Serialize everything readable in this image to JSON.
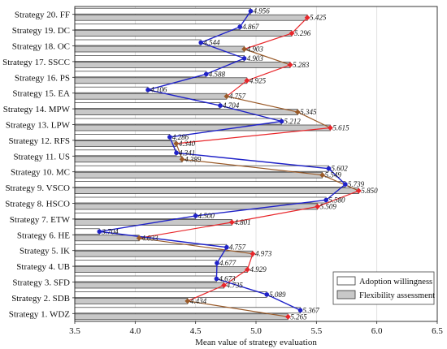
{
  "chart_data": {
    "type": "bar",
    "xlabel": "Mean value of strategy evaluation",
    "xlim": [
      3.5,
      6.5
    ],
    "xticks": [
      "3.5",
      "4.0",
      "4.5",
      "5.0",
      "5.5",
      "6.0",
      "6.5"
    ],
    "grid": true,
    "legend_position": "bottom-right",
    "categories": [
      "Strategy 1. WDZ",
      "Strategy 2. SDB",
      "Strategy 3. SFD",
      "Strategy 4. UB",
      "Strategy 5. IK",
      "Strategy 6. HE",
      "Strategy 7. ETW",
      "Strategy 8. HSCO",
      "Strategy 9. VSCO",
      "Strategy 10. MC",
      "Strategy 11. US",
      "Strategy 12. RFS",
      "Strategy 13. LPW",
      "Strategy 14. MPW",
      "Strategy 15. EA",
      "Strategy 16. PS",
      "Strategy 17. SSCC",
      "Strategy 18. OC",
      "Strategy 19. DC",
      "Strategy 20. FF"
    ],
    "series": [
      {
        "name": "Adoption willingness",
        "values": [
          5.367,
          5.089,
          4.673,
          4.677,
          4.757,
          3.704,
          4.5,
          5.58,
          5.739,
          5.602,
          4.341,
          4.286,
          5.212,
          4.704,
          4.106,
          4.588,
          4.903,
          4.544,
          4.867,
          4.956
        ],
        "labels": [
          "5.367",
          "5.089",
          "4.673",
          "4.677",
          "4.757",
          "3.704",
          "4.500",
          "5.580",
          "5.739",
          "5.602",
          "4.341",
          "4.286",
          "5.212",
          "4.704",
          "4.106",
          "4.588",
          "4.903",
          "4.544",
          "4.867",
          "4.956"
        ]
      },
      {
        "name": "Flexibility assessment",
        "values": [
          5.265,
          4.434,
          4.735,
          4.929,
          4.973,
          4.033,
          4.801,
          5.509,
          5.85,
          5.549,
          4.389,
          4.34,
          5.615,
          5.345,
          4.757,
          4.925,
          5.283,
          4.903,
          5.296,
          5.425
        ],
        "labels": [
          "5.265",
          "4.434",
          "4.735",
          "4.929",
          "4.973",
          "4.033",
          "4.801",
          "5.509",
          "5.850",
          "5.549",
          "4.389",
          "4.340",
          "5.615",
          "5.345",
          "4.757",
          "4.925",
          "5.283",
          "4.903",
          "5.296",
          "5.425"
        ]
      }
    ],
    "colors": {
      "adoption_bar": "#ffffff",
      "flexibility_bar": "#c8c8c8",
      "bar_edge": "#333333",
      "adoption_line": "#1f22c8",
      "flexibility_line_up": "#e8262a",
      "flexibility_line_down": "#9a5a28"
    }
  }
}
